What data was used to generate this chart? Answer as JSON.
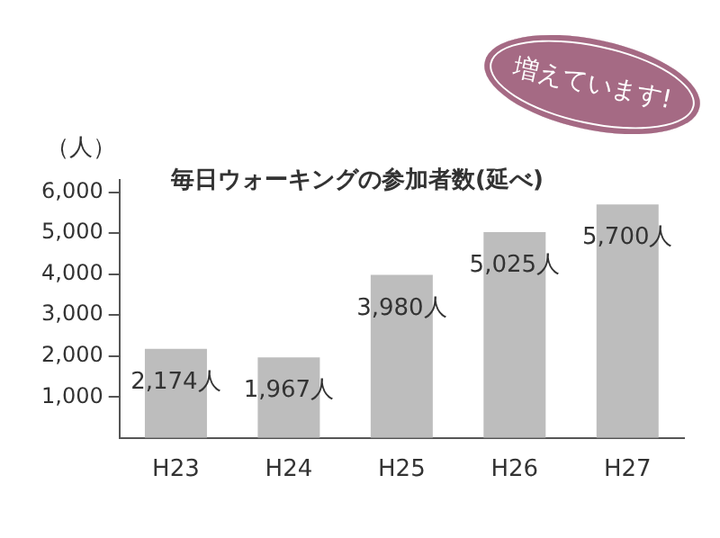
{
  "chart_data": {
    "type": "bar",
    "title": "毎日ウォーキングの参加者数(延べ)",
    "ylabel": "（人）",
    "categories": [
      "H23",
      "H24",
      "H25",
      "H26",
      "H27"
    ],
    "values": [
      2174,
      1967,
      3980,
      5025,
      5700
    ],
    "color": "#bdbdbd",
    "value_labels": [
      "2,174人",
      "1,967人",
      "3,980人",
      "5,025人",
      "5,700人"
    ],
    "ylim": [
      0,
      6300
    ],
    "yticks": [
      {
        "value": 1000,
        "label": "1,000"
      },
      {
        "value": 2000,
        "label": "2,000"
      },
      {
        "value": 3000,
        "label": "3,000"
      },
      {
        "value": 4000,
        "label": "4,000"
      },
      {
        "value": 5000,
        "label": "5,000"
      },
      {
        "value": 6000,
        "label": "6,000"
      }
    ],
    "grid": false,
    "legend": false,
    "annotations": [
      "増えています!"
    ]
  }
}
